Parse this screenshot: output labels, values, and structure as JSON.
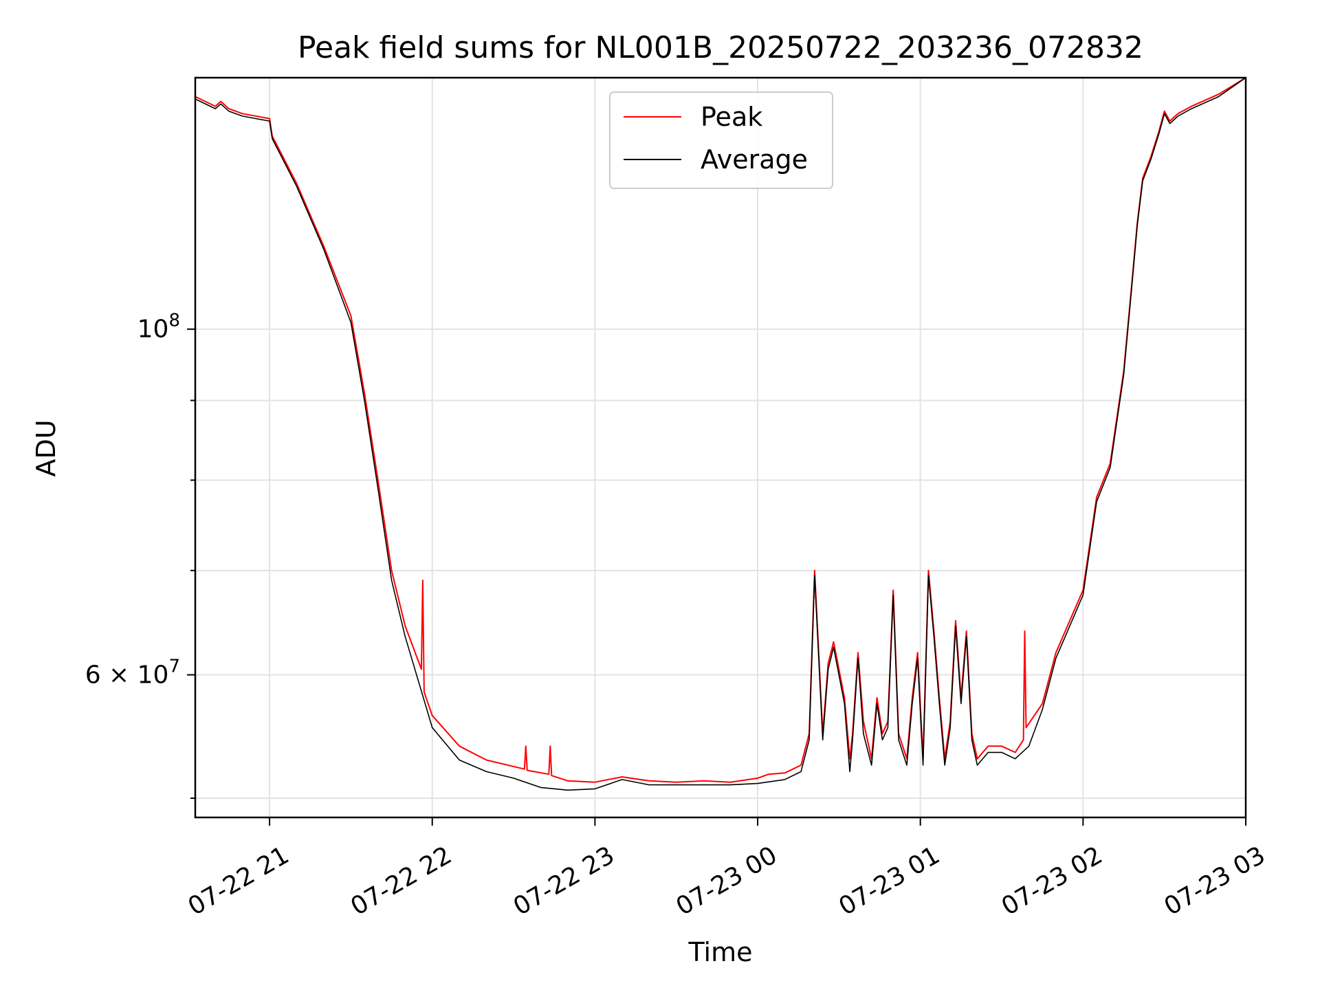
{
  "chart_data": {
    "type": "line",
    "title": "Peak field sums for NL001B_20250722_203236_072832",
    "xlabel": "Time",
    "ylabel": "ADU",
    "x_start": "2025-07-22T20:32:36",
    "x_end": "2025-07-23T03:00:00",
    "xlim": [
      "2025-07-22T20:32:36",
      "2025-07-23T03:00:00"
    ],
    "ylim": [
      48600000,
      145000000
    ],
    "yscale": "log",
    "grid": true,
    "legend_position": "top-center",
    "x_ticks": [
      {
        "label": "07-22 21",
        "value": "2025-07-22T21:00:00"
      },
      {
        "label": "07-22 22",
        "value": "2025-07-22T22:00:00"
      },
      {
        "label": "07-22 23",
        "value": "2025-07-22T23:00:00"
      },
      {
        "label": "07-23 00",
        "value": "2025-07-23T00:00:00"
      },
      {
        "label": "07-23 01",
        "value": "2025-07-23T01:00:00"
      },
      {
        "label": "07-23 02",
        "value": "2025-07-23T02:00:00"
      },
      {
        "label": "07-23 03",
        "value": "2025-07-23T03:00:00"
      }
    ],
    "y_major_ticks": [
      {
        "label_base": "10",
        "label_exp": "8",
        "value": 100000000
      },
      {
        "label_base": "6 × 10",
        "label_exp": "7",
        "value": 60000000
      }
    ],
    "y_minor_ticks": [
      50000000,
      70000000,
      80000000,
      90000000
    ],
    "series": [
      {
        "name": "Peak",
        "color": "#ff0000",
        "x": [
          "2025-07-22T20:32:36",
          "2025-07-22T20:40:00",
          "2025-07-22T20:42:00",
          "2025-07-22T20:45:00",
          "2025-07-22T20:50:00",
          "2025-07-22T21:00:00",
          "2025-07-22T21:01:00",
          "2025-07-22T21:10:00",
          "2025-07-22T21:20:00",
          "2025-07-22T21:30:00",
          "2025-07-22T21:35:00",
          "2025-07-22T21:40:00",
          "2025-07-22T21:45:00",
          "2025-07-22T21:50:00",
          "2025-07-22T21:56:00",
          "2025-07-22T21:56:30",
          "2025-07-22T21:57:00",
          "2025-07-22T22:00:00",
          "2025-07-22T22:10:00",
          "2025-07-22T22:20:00",
          "2025-07-22T22:34:00",
          "2025-07-22T22:34:30",
          "2025-07-22T22:35:00",
          "2025-07-22T22:43:00",
          "2025-07-22T22:43:30",
          "2025-07-22T22:44:00",
          "2025-07-22T22:50:00",
          "2025-07-22T23:00:00",
          "2025-07-22T23:10:00",
          "2025-07-22T23:20:00",
          "2025-07-22T23:30:00",
          "2025-07-22T23:40:00",
          "2025-07-22T23:50:00",
          "2025-07-23T00:00:00",
          "2025-07-23T00:04:00",
          "2025-07-23T00:10:00",
          "2025-07-23T00:16:00",
          "2025-07-23T00:19:00",
          "2025-07-23T00:21:00",
          "2025-07-23T00:24:00",
          "2025-07-23T00:26:00",
          "2025-07-23T00:28:00",
          "2025-07-23T00:32:00",
          "2025-07-23T00:34:00",
          "2025-07-23T00:35:00",
          "2025-07-23T00:37:00",
          "2025-07-23T00:39:00",
          "2025-07-23T00:42:00",
          "2025-07-23T00:44:00",
          "2025-07-23T00:46:00",
          "2025-07-23T00:48:00",
          "2025-07-23T00:50:00",
          "2025-07-23T00:52:00",
          "2025-07-23T00:55:00",
          "2025-07-23T00:57:00",
          "2025-07-23T00:59:00",
          "2025-07-23T01:01:00",
          "2025-07-23T01:03:00",
          "2025-07-23T01:05:00",
          "2025-07-23T01:07:00",
          "2025-07-23T01:09:00",
          "2025-07-23T01:11:00",
          "2025-07-23T01:13:00",
          "2025-07-23T01:15:00",
          "2025-07-23T01:17:00",
          "2025-07-23T01:19:00",
          "2025-07-23T01:21:00",
          "2025-07-23T01:25:00",
          "2025-07-23T01:30:00",
          "2025-07-23T01:35:00",
          "2025-07-23T01:38:00",
          "2025-07-23T01:38:30",
          "2025-07-23T01:39:00",
          "2025-07-23T01:45:00",
          "2025-07-23T01:50:00",
          "2025-07-23T02:00:00",
          "2025-07-23T02:05:00",
          "2025-07-23T02:10:00",
          "2025-07-23T02:15:00",
          "2025-07-23T02:18:00",
          "2025-07-23T02:20:00",
          "2025-07-23T02:22:00",
          "2025-07-23T02:25:00",
          "2025-07-23T02:28:00",
          "2025-07-23T02:30:00",
          "2025-07-23T02:32:00",
          "2025-07-23T02:35:00",
          "2025-07-23T02:40:00",
          "2025-07-23T02:50:00",
          "2025-07-23T03:00:00"
        ],
        "values": [
          141000000,
          139000000,
          140000000,
          138500000,
          137500000,
          136500000,
          133000000,
          124000000,
          113000000,
          102000000,
          91000000,
          80000000,
          70000000,
          64500000,
          60500000,
          69000000,
          58500000,
          56500000,
          54000000,
          52900000,
          52200000,
          54000000,
          52100000,
          51800000,
          54000000,
          51700000,
          51300000,
          51200000,
          51600000,
          51300000,
          51200000,
          51300000,
          51200000,
          51500000,
          51800000,
          51900000,
          52500000,
          55000000,
          70000000,
          55000000,
          61000000,
          63000000,
          58000000,
          53000000,
          55000000,
          62000000,
          56000000,
          53000000,
          58000000,
          55000000,
          56000000,
          68000000,
          55000000,
          53000000,
          58000000,
          62000000,
          53000000,
          70000000,
          64000000,
          58000000,
          53000000,
          56000000,
          65000000,
          58000000,
          64000000,
          55000000,
          53000000,
          54000000,
          54000000,
          53500000,
          54500000,
          64000000,
          55500000,
          57500000,
          62000000,
          68000000,
          78000000,
          82000000,
          94000000,
          107000000,
          117000000,
          125000000,
          129000000,
          134000000,
          138000000,
          136000000,
          137500000,
          139000000,
          141500000,
          145000000
        ]
      },
      {
        "name": "Average",
        "color": "#000000",
        "x": [
          "2025-07-22T20:32:36",
          "2025-07-22T20:40:00",
          "2025-07-22T20:42:00",
          "2025-07-22T20:45:00",
          "2025-07-22T20:50:00",
          "2025-07-22T21:00:00",
          "2025-07-22T21:01:00",
          "2025-07-22T21:10:00",
          "2025-07-22T21:20:00",
          "2025-07-22T21:30:00",
          "2025-07-22T21:35:00",
          "2025-07-22T21:40:00",
          "2025-07-22T21:45:00",
          "2025-07-22T21:50:00",
          "2025-07-22T22:00:00",
          "2025-07-22T22:10:00",
          "2025-07-22T22:20:00",
          "2025-07-22T22:30:00",
          "2025-07-22T22:40:00",
          "2025-07-22T22:50:00",
          "2025-07-22T23:00:00",
          "2025-07-22T23:10:00",
          "2025-07-22T23:20:00",
          "2025-07-22T23:30:00",
          "2025-07-22T23:40:00",
          "2025-07-22T23:50:00",
          "2025-07-23T00:00:00",
          "2025-07-23T00:10:00",
          "2025-07-23T00:16:00",
          "2025-07-23T00:19:00",
          "2025-07-23T00:21:00",
          "2025-07-23T00:24:00",
          "2025-07-23T00:26:00",
          "2025-07-23T00:28:00",
          "2025-07-23T00:32:00",
          "2025-07-23T00:34:00",
          "2025-07-23T00:35:00",
          "2025-07-23T00:37:00",
          "2025-07-23T00:39:00",
          "2025-07-23T00:42:00",
          "2025-07-23T00:44:00",
          "2025-07-23T00:46:00",
          "2025-07-23T00:48:00",
          "2025-07-23T00:50:00",
          "2025-07-23T00:52:00",
          "2025-07-23T00:55:00",
          "2025-07-23T00:57:00",
          "2025-07-23T00:59:00",
          "2025-07-23T01:01:00",
          "2025-07-23T01:03:00",
          "2025-07-23T01:05:00",
          "2025-07-23T01:07:00",
          "2025-07-23T01:09:00",
          "2025-07-23T01:11:00",
          "2025-07-23T01:13:00",
          "2025-07-23T01:15:00",
          "2025-07-23T01:17:00",
          "2025-07-23T01:19:00",
          "2025-07-23T01:21:00",
          "2025-07-23T01:25:00",
          "2025-07-23T01:30:00",
          "2025-07-23T01:35:00",
          "2025-07-23T01:40:00",
          "2025-07-23T01:45:00",
          "2025-07-23T01:50:00",
          "2025-07-23T02:00:00",
          "2025-07-23T02:05:00",
          "2025-07-23T02:10:00",
          "2025-07-23T02:15:00",
          "2025-07-23T02:18:00",
          "2025-07-23T02:20:00",
          "2025-07-23T02:22:00",
          "2025-07-23T02:25:00",
          "2025-07-23T02:28:00",
          "2025-07-23T02:30:00",
          "2025-07-23T02:32:00",
          "2025-07-23T02:35:00",
          "2025-07-23T02:40:00",
          "2025-07-23T02:50:00",
          "2025-07-23T03:00:00"
        ],
        "values": [
          140500000,
          138500000,
          139500000,
          138000000,
          137000000,
          136000000,
          132500000,
          123500000,
          112500000,
          101000000,
          90000000,
          79000000,
          69000000,
          63500000,
          55500000,
          52900000,
          52000000,
          51500000,
          50800000,
          50600000,
          50700000,
          51400000,
          51000000,
          51000000,
          51000000,
          51000000,
          51100000,
          51400000,
          52000000,
          54500000,
          69500000,
          54500000,
          60500000,
          62500000,
          57500000,
          52000000,
          54500000,
          61500000,
          55000000,
          52500000,
          57500000,
          54500000,
          55500000,
          67500000,
          54500000,
          52500000,
          57500000,
          61500000,
          52500000,
          69500000,
          63500000,
          57500000,
          52500000,
          55500000,
          64500000,
          57500000,
          63500000,
          54500000,
          52500000,
          53500000,
          53500000,
          53000000,
          54000000,
          57000000,
          61500000,
          67500000,
          77500000,
          81500000,
          93500000,
          106500000,
          116500000,
          124500000,
          128500000,
          133500000,
          137500000,
          135500000,
          137000000,
          138500000,
          141000000,
          145000000
        ]
      }
    ]
  }
}
